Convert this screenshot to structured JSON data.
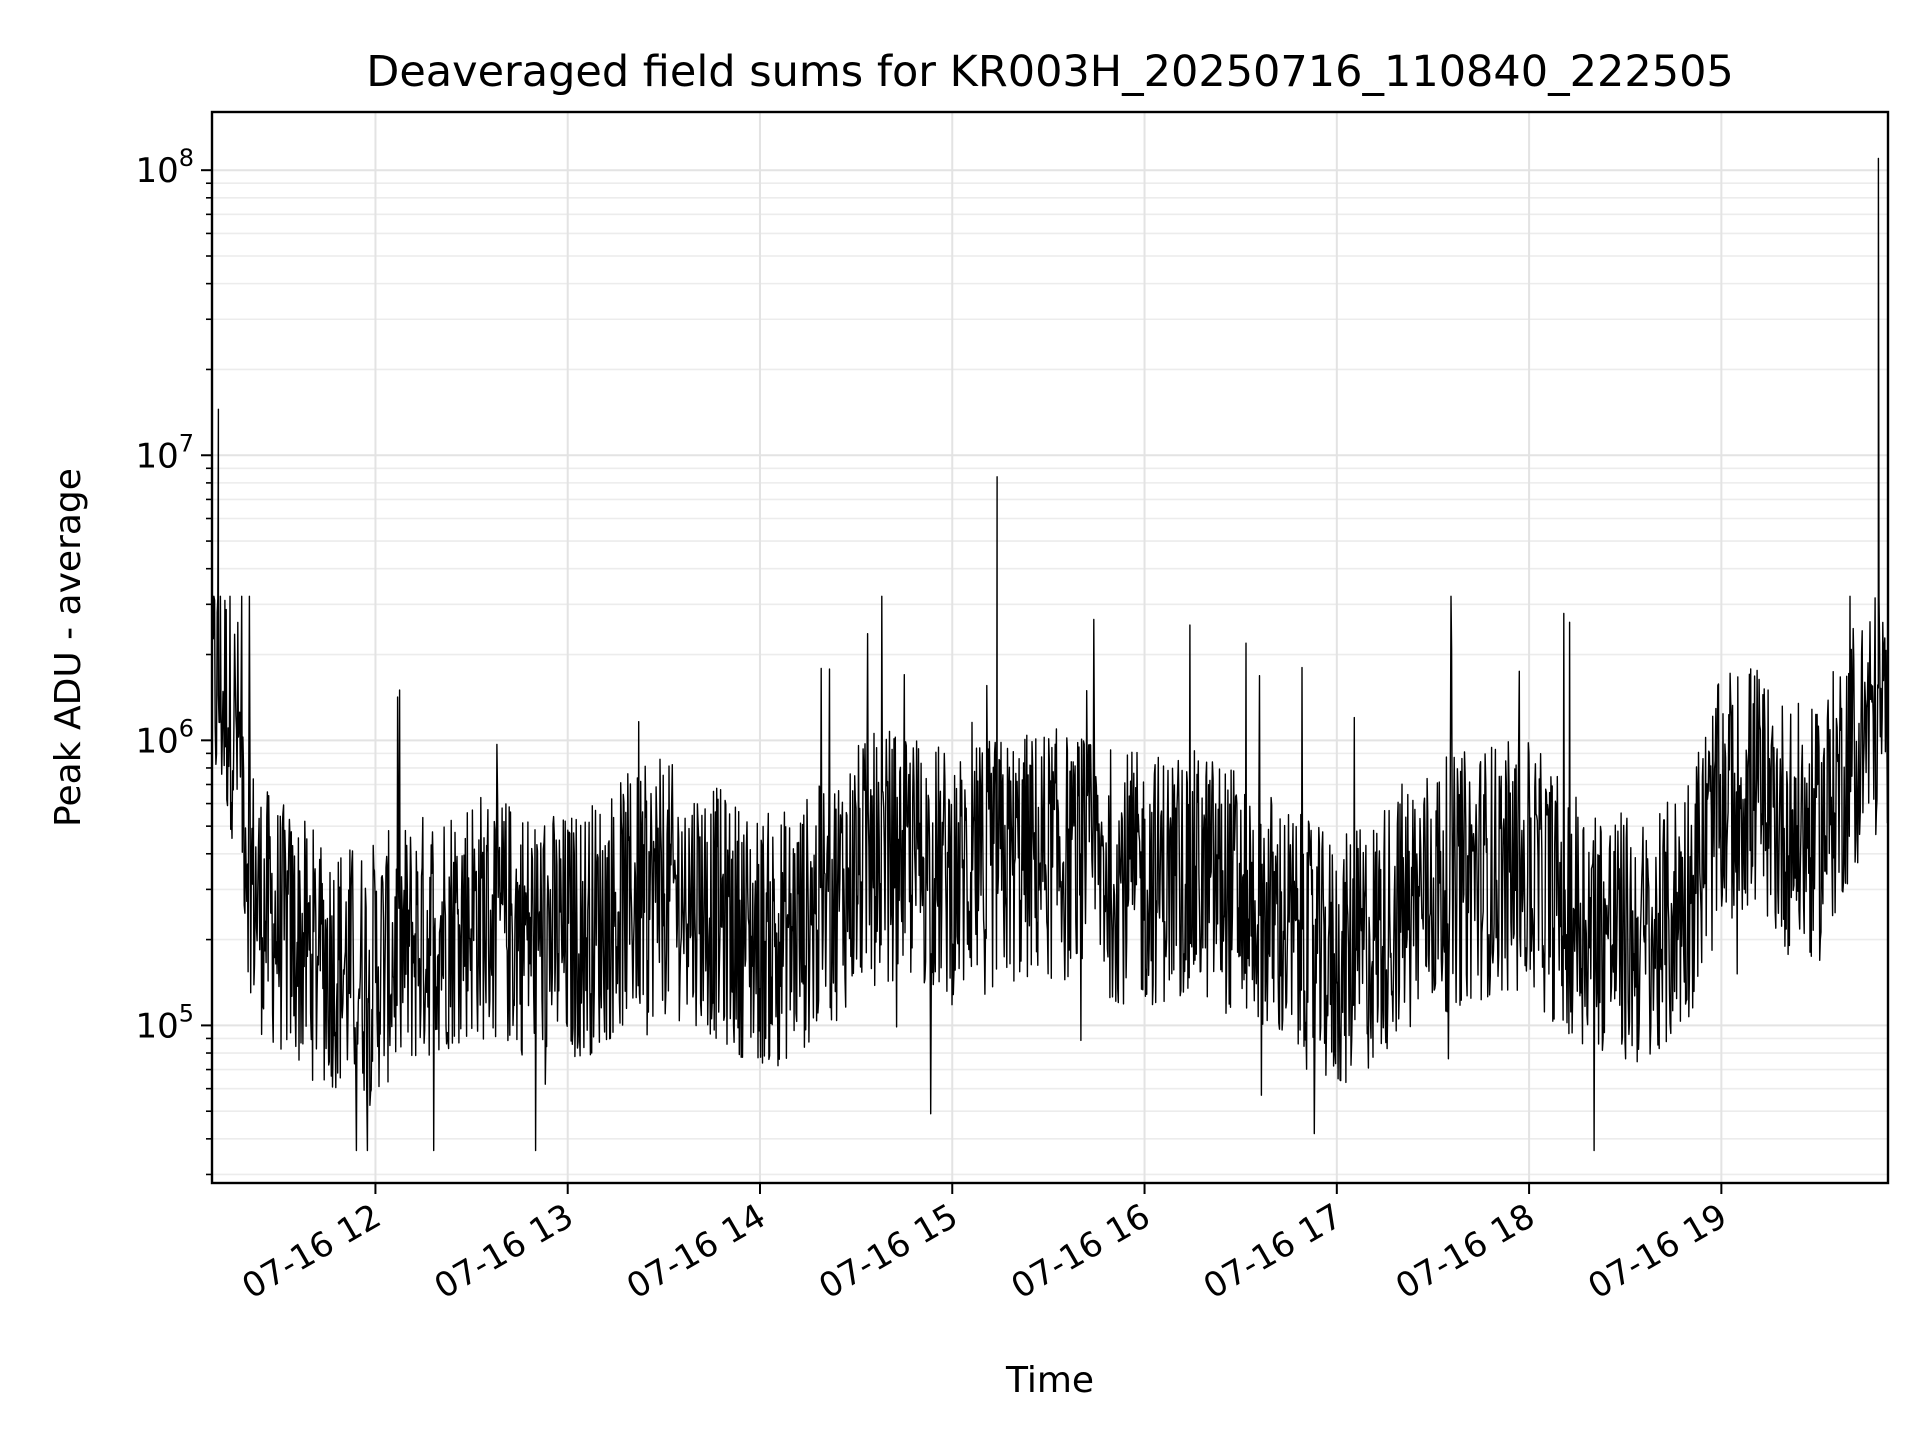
{
  "chart_data": {
    "type": "line",
    "title": "Deaveraged field sums for KR003H_20250716_110840_222505",
    "xlabel": "Time",
    "ylabel": "Peak ADU - average",
    "x_axis_type": "datetime",
    "y_scale": "log",
    "xlim": [
      "2025-07-16 11:09",
      "2025-07-16 19:52"
    ],
    "ylim": [
      28000,
      160000000
    ],
    "x_tick_labels": [
      "07-16 12",
      "07-16 13",
      "07-16 14",
      "07-16 15",
      "07-16 16",
      "07-16 17",
      "07-16 18",
      "07-16 19"
    ],
    "y_tick_labels": [
      {
        "base": "10",
        "exp": "5"
      },
      {
        "base": "10",
        "exp": "6"
      },
      {
        "base": "10",
        "exp": "7"
      },
      {
        "base": "10",
        "exp": "8"
      }
    ],
    "grid": true,
    "grid_minor_y": true,
    "line_color": "#000000",
    "series": [
      {
        "x": [
          "2025-07-16 11:09",
          "2025-07-16 11:12",
          "2025-07-16 11:15",
          "2025-07-16 11:18",
          "2025-07-16 11:20",
          "2025-07-16 11:22",
          "2025-07-16 11:25",
          "2025-07-16 11:30",
          "2025-07-16 11:35",
          "2025-07-16 11:40",
          "2025-07-16 11:45",
          "2025-07-16 11:50",
          "2025-07-16 11:55",
          "2025-07-16 12:00",
          "2025-07-16 12:10",
          "2025-07-16 12:20",
          "2025-07-16 12:30",
          "2025-07-16 12:40",
          "2025-07-16 12:50",
          "2025-07-16 13:00",
          "2025-07-16 13:10",
          "2025-07-16 13:20",
          "2025-07-16 13:30",
          "2025-07-16 13:40",
          "2025-07-16 13:50",
          "2025-07-16 14:00",
          "2025-07-16 14:10",
          "2025-07-16 14:20",
          "2025-07-16 14:30",
          "2025-07-16 14:40",
          "2025-07-16 14:50",
          "2025-07-16 15:00",
          "2025-07-16 15:10",
          "2025-07-16 15:20",
          "2025-07-16 15:30",
          "2025-07-16 15:40",
          "2025-07-16 15:50",
          "2025-07-16 16:00",
          "2025-07-16 16:10",
          "2025-07-16 16:20",
          "2025-07-16 16:30",
          "2025-07-16 16:40",
          "2025-07-16 16:50",
          "2025-07-16 17:00",
          "2025-07-16 17:10",
          "2025-07-16 17:20",
          "2025-07-16 17:30",
          "2025-07-16 17:40",
          "2025-07-16 17:50",
          "2025-07-16 18:00",
          "2025-07-16 18:10",
          "2025-07-16 18:20",
          "2025-07-16 18:30",
          "2025-07-16 18:40",
          "2025-07-16 18:50",
          "2025-07-16 19:00",
          "2025-07-16 19:10",
          "2025-07-16 19:20",
          "2025-07-16 19:30",
          "2025-07-16 19:40",
          "2025-07-16 19:45",
          "2025-07-16 19:50",
          "2025-07-16 19:52"
        ],
        "y": [
          1600000,
          1500000,
          1300000,
          900000,
          450000,
          300000,
          250000,
          220000,
          200000,
          180000,
          170000,
          160000,
          155000,
          160000,
          190000,
          220000,
          250000,
          230000,
          210000,
          200000,
          230000,
          280000,
          300000,
          280000,
          230000,
          200000,
          210000,
          260000,
          350000,
          400000,
          380000,
          330000,
          360000,
          380000,
          400000,
          380000,
          340000,
          320000,
          340000,
          330000,
          290000,
          240000,
          190000,
          160000,
          190000,
          260000,
          300000,
          330000,
          360000,
          350000,
          270000,
          230000,
          200000,
          190000,
          300000,
          600000,
          700000,
          500000,
          450000,
          900000,
          1100000,
          1300000,
          1000000
        ]
      }
    ],
    "spikes": [
      {
        "x": "2025-07-16 11:11",
        "y": 14500000
      },
      {
        "x": "2025-07-16 15:14",
        "y": 8400000
      },
      {
        "x": "2025-07-16 19:49",
        "y": 110000000
      }
    ]
  }
}
